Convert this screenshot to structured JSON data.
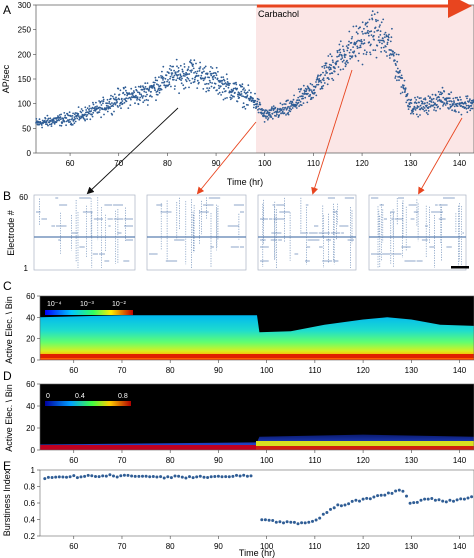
{
  "panels": {
    "A": "A",
    "B": "B",
    "C": "C",
    "D": "D",
    "E": "E"
  },
  "colors": {
    "point": "#2f5d95",
    "treatment_shade": "#fbe6e6",
    "treatment_arrow": "#e8451f",
    "black_arrow": "#111111",
    "raster_dot": "#5b7fb0",
    "heatmap_bg": "#000000"
  },
  "chart_data": [
    {
      "id": "A",
      "type": "scatter",
      "ylabel": "AP/sec",
      "xlabel": "Time (hr)",
      "xlim": [
        53,
        143
      ],
      "ylim": [
        0,
        300
      ],
      "xticks": [
        60,
        70,
        80,
        90,
        100,
        110,
        120,
        130,
        140
      ],
      "yticks": [
        0,
        50,
        100,
        150,
        200,
        250,
        300
      ],
      "annotation": "Carbachol",
      "treatment_start": 98,
      "treatment_end": 143,
      "trend": [
        {
          "x": 53,
          "y": 60
        },
        {
          "x": 60,
          "y": 70
        },
        {
          "x": 65,
          "y": 85
        },
        {
          "x": 70,
          "y": 110
        },
        {
          "x": 75,
          "y": 120
        },
        {
          "x": 80,
          "y": 150
        },
        {
          "x": 85,
          "y": 165
        },
        {
          "x": 90,
          "y": 145
        },
        {
          "x": 95,
          "y": 120
        },
        {
          "x": 98,
          "y": 105
        },
        {
          "x": 100,
          "y": 75
        },
        {
          "x": 105,
          "y": 90
        },
        {
          "x": 110,
          "y": 130
        },
        {
          "x": 115,
          "y": 190
        },
        {
          "x": 120,
          "y": 230
        },
        {
          "x": 123,
          "y": 245
        },
        {
          "x": 126,
          "y": 210
        },
        {
          "x": 128,
          "y": 150
        },
        {
          "x": 130,
          "y": 95
        },
        {
          "x": 133,
          "y": 95
        },
        {
          "x": 136,
          "y": 110
        },
        {
          "x": 140,
          "y": 100
        },
        {
          "x": 143,
          "y": 100
        }
      ]
    },
    {
      "id": "B",
      "type": "raster",
      "ylabel": "Electrode #",
      "yticks": [
        1,
        60
      ],
      "snapshots": 4
    },
    {
      "id": "C",
      "type": "heatmap",
      "ylabel": "Active Elec. \\ Bin",
      "xlabel": "",
      "xlim": [
        53,
        143
      ],
      "ylim": [
        0,
        60
      ],
      "xticks": [
        60,
        70,
        80,
        90,
        100,
        110,
        120,
        130,
        140
      ],
      "yticks": [
        0,
        20,
        40,
        60
      ],
      "colorbar_ticks": [
        "10⁻⁴",
        "10⁻³",
        "10⁻²"
      ],
      "top_extent": [
        {
          "x": 53,
          "y": 40
        },
        {
          "x": 70,
          "y": 42
        },
        {
          "x": 90,
          "y": 42
        },
        {
          "x": 98,
          "y": 42
        },
        {
          "x": 98.5,
          "y": 26
        },
        {
          "x": 105,
          "y": 27
        },
        {
          "x": 112,
          "y": 33
        },
        {
          "x": 120,
          "y": 38
        },
        {
          "x": 125,
          "y": 40
        },
        {
          "x": 130,
          "y": 38
        },
        {
          "x": 136,
          "y": 33
        },
        {
          "x": 143,
          "y": 32
        }
      ]
    },
    {
      "id": "D",
      "type": "heatmap",
      "ylabel": "Active Elec. \\ Bin",
      "xlabel": "",
      "xlim": [
        53,
        143
      ],
      "ylim": [
        0,
        60
      ],
      "xticks": [
        60,
        70,
        80,
        90,
        100,
        110,
        120,
        130,
        140
      ],
      "yticks": [
        0,
        20,
        40,
        60
      ],
      "colorbar_ticks": [
        "0",
        "0.4",
        "0.8"
      ],
      "top_extent": [
        {
          "x": 53,
          "y": 5
        },
        {
          "x": 98,
          "y": 7
        },
        {
          "x": 98.5,
          "y": 12
        },
        {
          "x": 120,
          "y": 14
        },
        {
          "x": 143,
          "y": 12
        }
      ]
    },
    {
      "id": "E",
      "type": "scatter",
      "ylabel": "Burstiness Index",
      "xlabel": "Time (hr)",
      "xlim": [
        53,
        143
      ],
      "ylim": [
        0.2,
        1.0
      ],
      "xticks": [
        60,
        70,
        80,
        90,
        100,
        110,
        120,
        130,
        140
      ],
      "yticks": [
        0.2,
        0.4,
        0.6,
        0.8,
        1.0
      ],
      "trend": [
        {
          "x": 54,
          "y": 0.9
        },
        {
          "x": 60,
          "y": 0.92
        },
        {
          "x": 70,
          "y": 0.93
        },
        {
          "x": 80,
          "y": 0.91
        },
        {
          "x": 90,
          "y": 0.92
        },
        {
          "x": 97,
          "y": 0.93
        },
        {
          "x": 98.5,
          "y": 0.4
        },
        {
          "x": 102,
          "y": 0.38
        },
        {
          "x": 106,
          "y": 0.36
        },
        {
          "x": 109,
          "y": 0.36
        },
        {
          "x": 111,
          "y": 0.42
        },
        {
          "x": 114,
          "y": 0.55
        },
        {
          "x": 118,
          "y": 0.62
        },
        {
          "x": 122,
          "y": 0.67
        },
        {
          "x": 126,
          "y": 0.73
        },
        {
          "x": 128,
          "y": 0.76
        },
        {
          "x": 130,
          "y": 0.58
        },
        {
          "x": 133,
          "y": 0.66
        },
        {
          "x": 137,
          "y": 0.62
        },
        {
          "x": 140,
          "y": 0.64
        },
        {
          "x": 142,
          "y": 0.67
        }
      ]
    }
  ]
}
